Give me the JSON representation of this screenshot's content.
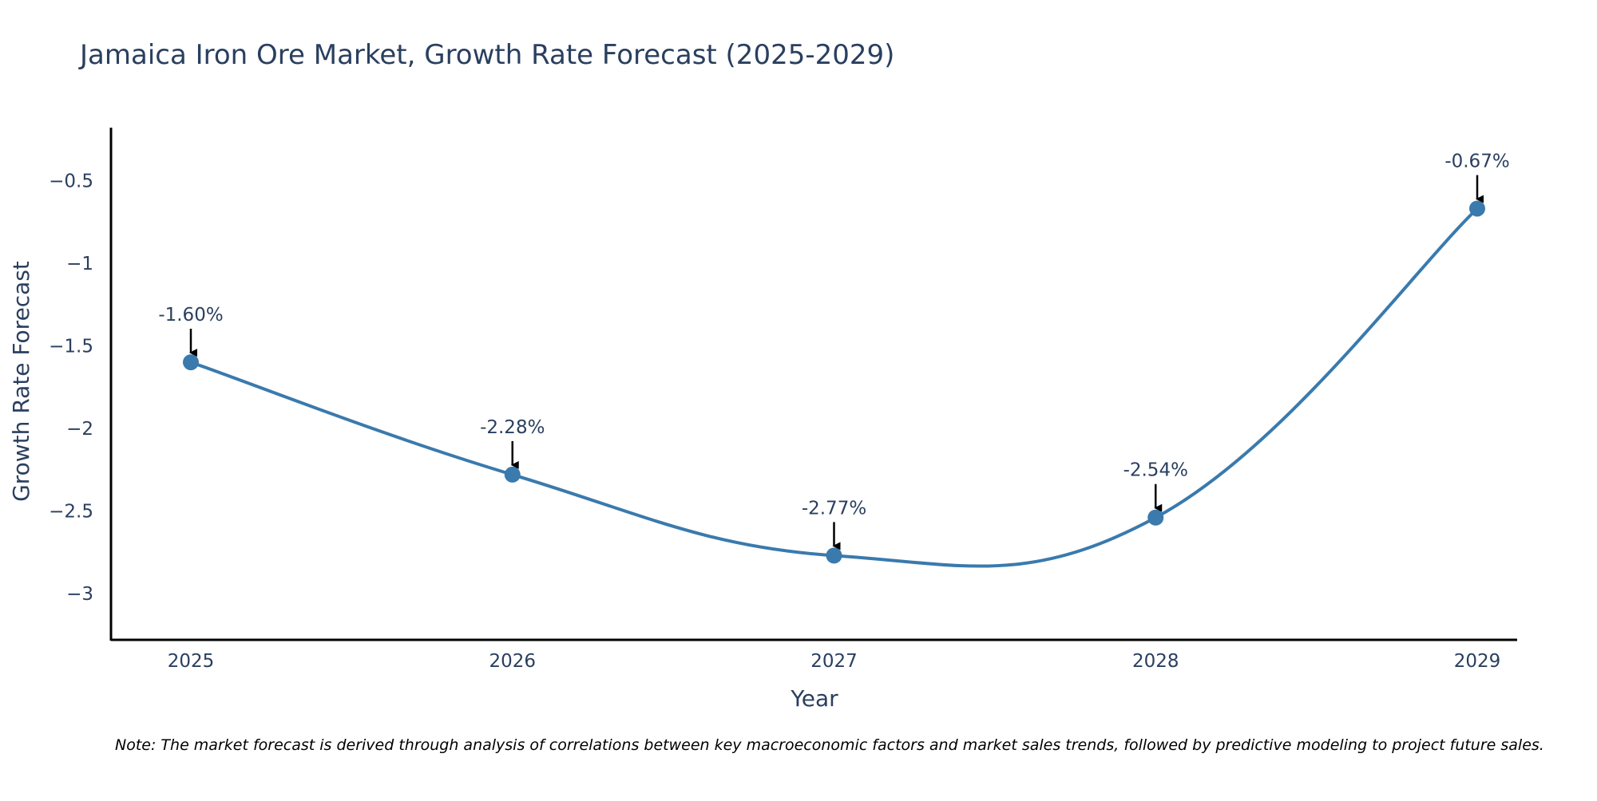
{
  "chart_data": {
    "type": "line",
    "title": "Jamaica Iron Ore Market, Growth Rate Forecast (2025-2029)",
    "xlabel": "Year",
    "ylabel": "Growth Rate Forecast",
    "categories": [
      "2025",
      "2026",
      "2027",
      "2028",
      "2029"
    ],
    "values": [
      -1.6,
      -2.28,
      -2.77,
      -2.54,
      -0.67
    ],
    "data_labels": [
      "-1.60%",
      "-2.28%",
      "-2.77%",
      "-2.54%",
      "-0.67%"
    ],
    "y_ticks": [
      -0.5,
      -1,
      -1.5,
      -2,
      -2.5,
      -3
    ],
    "y_tick_labels": [
      "−0.5",
      "−1",
      "−1.5",
      "−2",
      "−2.5",
      "−3"
    ],
    "ylim": [
      -3.28,
      -0.18
    ],
    "grid": false,
    "line_shape": "smooth",
    "note": "Note: The market forecast is derived through analysis of correlations between key macroeconomic factors and market sales trends, followed by predictive modeling to project future sales."
  },
  "colors": {
    "line": "#3a7aad",
    "marker": "#3a7aad",
    "text": "#2a3f5f",
    "axis": "#000000",
    "arrow": "#000000"
  }
}
